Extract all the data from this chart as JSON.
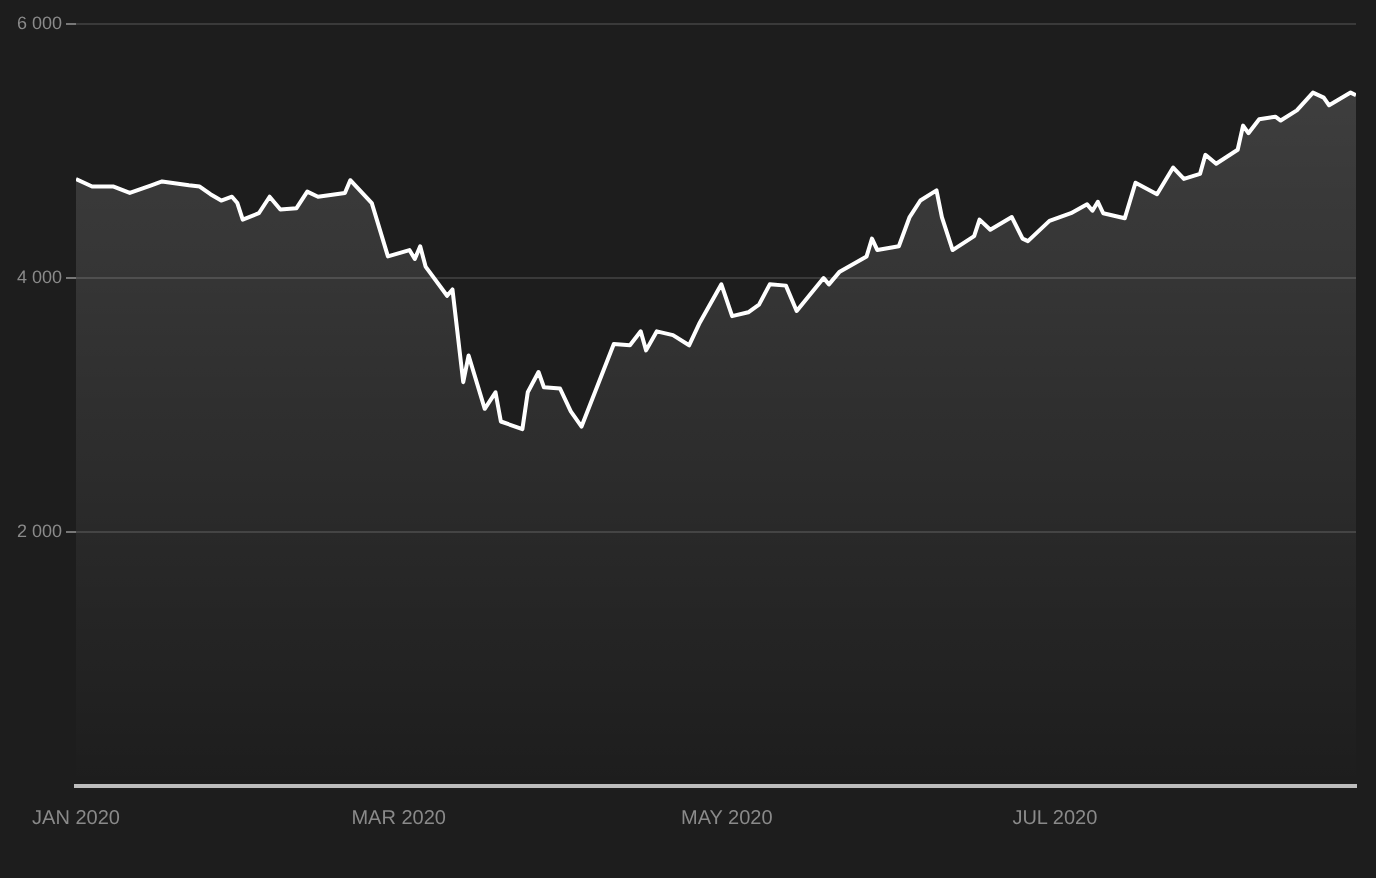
{
  "chart_data": {
    "type": "area",
    "x": [
      "2020-01-01",
      "2020-01-04",
      "2020-01-08",
      "2020-01-11",
      "2020-01-15",
      "2020-01-17",
      "2020-01-22",
      "2020-01-24",
      "2020-01-26",
      "2020-01-28",
      "2020-01-30",
      "2020-01-31",
      "2020-02-01",
      "2020-02-04",
      "2020-02-06",
      "2020-02-08",
      "2020-02-11",
      "2020-02-13",
      "2020-02-15",
      "2020-02-20",
      "2020-02-21",
      "2020-02-25",
      "2020-02-28",
      "2020-03-03",
      "2020-03-04",
      "2020-03-05",
      "2020-03-06",
      "2020-03-10",
      "2020-03-11",
      "2020-03-13",
      "2020-03-14",
      "2020-03-17",
      "2020-03-19",
      "2020-03-20",
      "2020-03-24",
      "2020-03-25",
      "2020-03-27",
      "2020-03-28",
      "2020-03-31",
      "2020-04-02",
      "2020-04-04",
      "2020-04-10",
      "2020-04-13",
      "2020-04-15",
      "2020-04-16",
      "2020-04-18",
      "2020-04-21",
      "2020-04-24",
      "2020-04-26",
      "2020-04-30",
      "2020-05-02",
      "2020-05-05",
      "2020-05-07",
      "2020-05-09",
      "2020-05-12",
      "2020-05-14",
      "2020-05-19",
      "2020-05-20",
      "2020-05-22",
      "2020-05-27",
      "2020-05-28",
      "2020-05-29",
      "2020-06-02",
      "2020-06-04",
      "2020-06-06",
      "2020-06-09",
      "2020-06-10",
      "2020-06-12",
      "2020-06-16",
      "2020-06-17",
      "2020-06-19",
      "2020-06-23",
      "2020-06-25",
      "2020-06-26",
      "2020-06-30",
      "2020-07-04",
      "2020-07-07",
      "2020-07-08",
      "2020-07-09",
      "2020-07-10",
      "2020-07-14",
      "2020-07-16",
      "2020-07-20",
      "2020-07-23",
      "2020-07-25",
      "2020-07-28",
      "2020-07-29",
      "2020-07-31",
      "2020-08-04",
      "2020-08-05",
      "2020-08-06",
      "2020-08-08",
      "2020-08-11",
      "2020-08-12",
      "2020-08-15",
      "2020-08-18",
      "2020-08-20",
      "2020-08-21",
      "2020-08-25",
      "2020-08-26"
    ],
    "series": [
      {
        "color": "#ffffff",
        "values": [
          4780,
          4720,
          4720,
          4670,
          4730,
          4760,
          4730,
          4720,
          4660,
          4610,
          4640,
          4590,
          4460,
          4510,
          4640,
          4540,
          4550,
          4680,
          4640,
          4670,
          4770,
          4590,
          4170,
          4220,
          4150,
          4250,
          4090,
          3860,
          3910,
          3180,
          3390,
          2970,
          3100,
          2870,
          2810,
          3100,
          3260,
          3140,
          3130,
          2950,
          2830,
          3480,
          3470,
          3580,
          3430,
          3580,
          3550,
          3470,
          3650,
          3950,
          3700,
          3730,
          3790,
          3950,
          3940,
          3740,
          4000,
          3950,
          4050,
          4170,
          4310,
          4220,
          4250,
          4480,
          4610,
          4690,
          4480,
          4220,
          4330,
          4460,
          4380,
          4480,
          4310,
          4290,
          4450,
          4510,
          4580,
          4530,
          4600,
          4510,
          4470,
          4750,
          4660,
          4870,
          4780,
          4820,
          4970,
          4900,
          5010,
          5200,
          5140,
          5250,
          5270,
          5240,
          5320,
          5460,
          5420,
          5360,
          5460,
          5440
        ]
      }
    ],
    "xlim": [
      "2020-01-01",
      "2020-08-26"
    ],
    "xticks": [
      {
        "value": "2020-01-01",
        "label": "JAN 2020"
      },
      {
        "value": "2020-03-01",
        "label": "MAR 2020"
      },
      {
        "value": "2020-05-01",
        "label": "MAY 2020"
      },
      {
        "value": "2020-07-01",
        "label": "JUL 2020"
      }
    ],
    "ylim": [
      0,
      6000
    ],
    "yticks": [
      {
        "value": 2000,
        "label": "2 000"
      },
      {
        "value": 4000,
        "label": "4 000"
      },
      {
        "value": 6000,
        "label": "6 000"
      }
    ],
    "grid": "y",
    "legend": false,
    "marker": "none",
    "line_style": "solid"
  }
}
